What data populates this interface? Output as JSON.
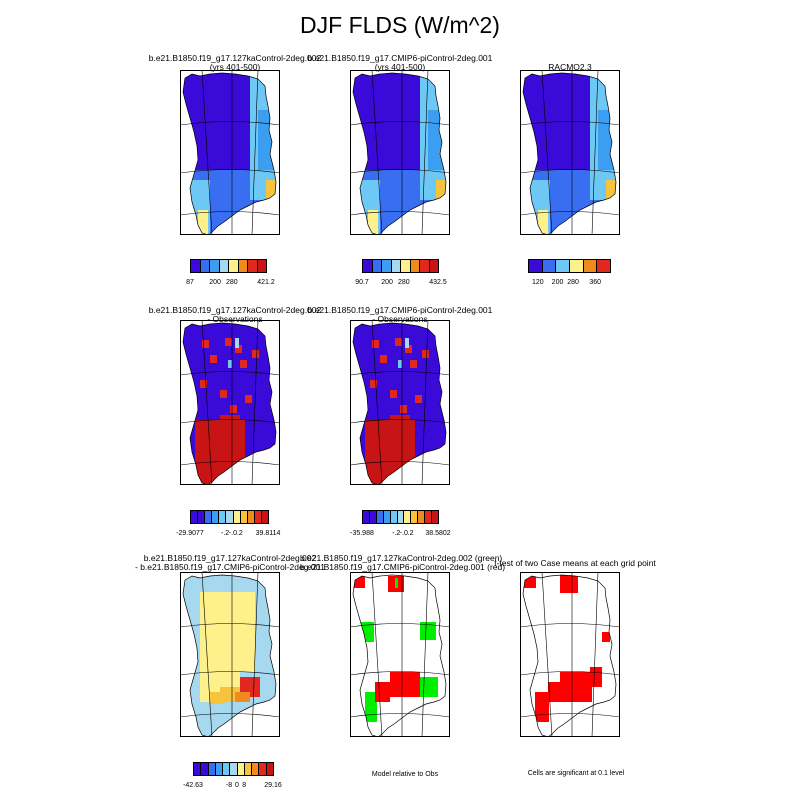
{
  "title": "DJF FLDS (W/m^2)",
  "panels": [
    {
      "id": "p1",
      "title_lines": [
        "b.e21.B1850.f19_g17.127kaControl-2deg.002",
        "(yrs 401-500)"
      ],
      "fill": "blue_base"
    },
    {
      "id": "p2",
      "title_lines": [
        "b.e21.B1850.f19_g17.CMIP6-piControl-2deg.001",
        "(yrs 401-500)"
      ],
      "fill": "blue_base"
    },
    {
      "id": "p3",
      "title_lines": [
        "RACMO2.3"
      ],
      "fill": "blue_base"
    },
    {
      "id": "p4",
      "title_lines": [
        "b.e21.B1850.f19_g17.127kaControl-2deg.002",
        "- Observations"
      ],
      "fill": "diff_obs"
    },
    {
      "id": "p5",
      "title_lines": [
        "b.e21.B1850.f19_g17.CMIP6-piControl-2deg.001",
        "- Observations"
      ],
      "fill": "diff_obs"
    },
    {
      "id": "p7",
      "title_lines": [
        "b.e21.B1850.f19_g17.127kaControl-2deg.002",
        "- b.e21.B1850.f19_g17.CMIP6-piControl-2deg.001"
      ],
      "fill": "diff_cases"
    },
    {
      "id": "p8",
      "title_lines": [
        "b.e21.B1850.f19_g17.127kaControl-2deg.002 (green)",
        "b.e21.B1850.f19_g17.CMIP6-piControl-2deg.001 (red)"
      ],
      "fill": "sig_rg"
    },
    {
      "id": "p9",
      "title_lines": [
        "t-test of two Case means at each grid point"
      ],
      "fill": "sig_r"
    }
  ],
  "colorbars": [
    {
      "id": "cb1",
      "labels": [
        "87",
        "200",
        "280",
        "421.2"
      ]
    },
    {
      "id": "cb2",
      "labels": [
        "90.7",
        "200",
        "280",
        "432.5"
      ]
    },
    {
      "id": "cb3",
      "labels": [
        "120",
        "200",
        "280",
        "360"
      ]
    },
    {
      "id": "cb4",
      "labels": [
        "-29.9077",
        "-.2",
        "-.0",
        ".2",
        "39.8114"
      ]
    },
    {
      "id": "cb5",
      "labels": [
        "-35.988",
        "-.2",
        "-.0",
        ".2",
        "38.5802"
      ]
    },
    {
      "id": "cb7",
      "labels": [
        "-42.63",
        "-8",
        "0",
        "8",
        "29.16"
      ]
    }
  ],
  "notes": {
    "model_relative": "Model relative to Obs",
    "cells_significant": "Cells are significant at 0.1 level"
  },
  "colors": {
    "scale": [
      "#3a0ad8",
      "#3a6ef0",
      "#3c9ef0",
      "#6ec8f5",
      "#a6d8f0",
      "#fef08a",
      "#f5c43c",
      "#f08a1e",
      "#e0281e",
      "#c81414"
    ],
    "green": "#00ee00",
    "red": "#ff0000"
  }
}
